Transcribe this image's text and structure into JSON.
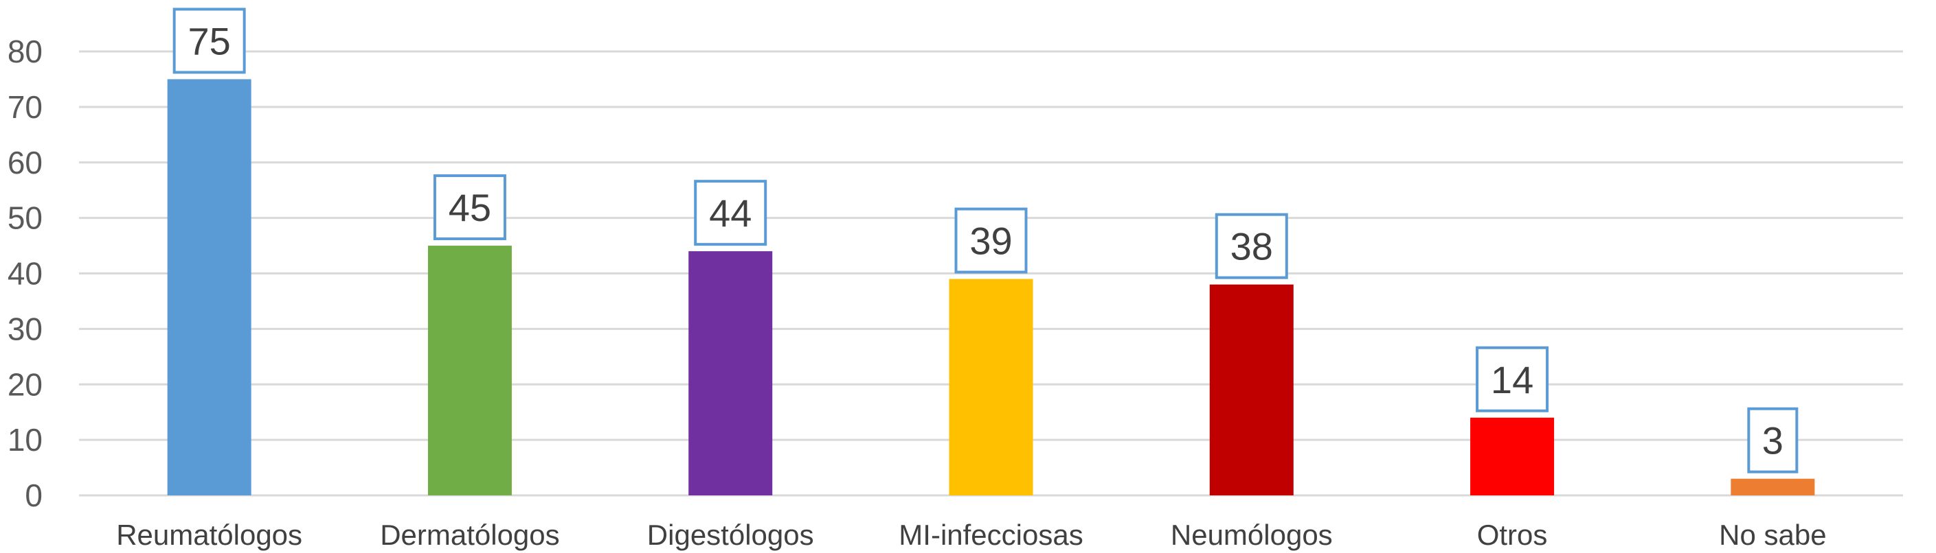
{
  "chart_data": {
    "type": "bar",
    "categories": [
      "Reumatólogos",
      "Dermatólogos",
      "Digestólogos",
      "MI-infecciosas",
      "Neumólogos",
      "Otros",
      "No sabe"
    ],
    "values": [
      75,
      45,
      44,
      39,
      38,
      14,
      3
    ],
    "colors": [
      "#5B9BD5",
      "#70AD47",
      "#7030A0",
      "#FFC000",
      "#C00000",
      "#FF0000",
      "#ED7D31"
    ],
    "ylim": [
      0,
      80
    ],
    "yticks": [
      0,
      10,
      20,
      30,
      40,
      50,
      60,
      70,
      80
    ],
    "title": "",
    "xlabel": "",
    "ylabel": "",
    "grid": true,
    "legend": "none",
    "data_labels": true,
    "data_label_border_color": "#5B9BD5",
    "gridline_color": "#D9D9D9"
  }
}
